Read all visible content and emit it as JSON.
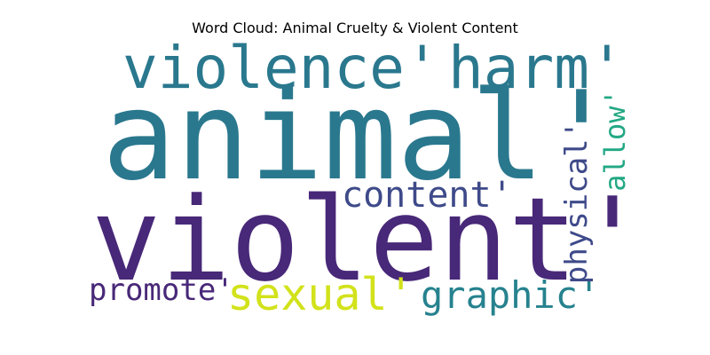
{
  "title": "Word Cloud: Animal Cruelty & Violent Content",
  "words": {
    "violence": {
      "text": "violence'",
      "color": "#2a788e"
    },
    "harm": {
      "text": "harm'",
      "color": "#2a788e"
    },
    "animal": {
      "text": "animal'",
      "color": "#2a788e"
    },
    "violent": {
      "text": "violent'",
      "color": "#482878"
    },
    "content": {
      "text": "content'",
      "color": "#3e4a89"
    },
    "sexual": {
      "text": "sexual'",
      "color": "#d2e21b"
    },
    "graphic": {
      "text": "graphic'",
      "color": "#26828e"
    },
    "promote": {
      "text": "promote'",
      "color": "#482878"
    },
    "physical": {
      "text": "physical'",
      "color": "#3e4a89"
    },
    "allow": {
      "text": "allow'",
      "color": "#22a884"
    }
  }
}
